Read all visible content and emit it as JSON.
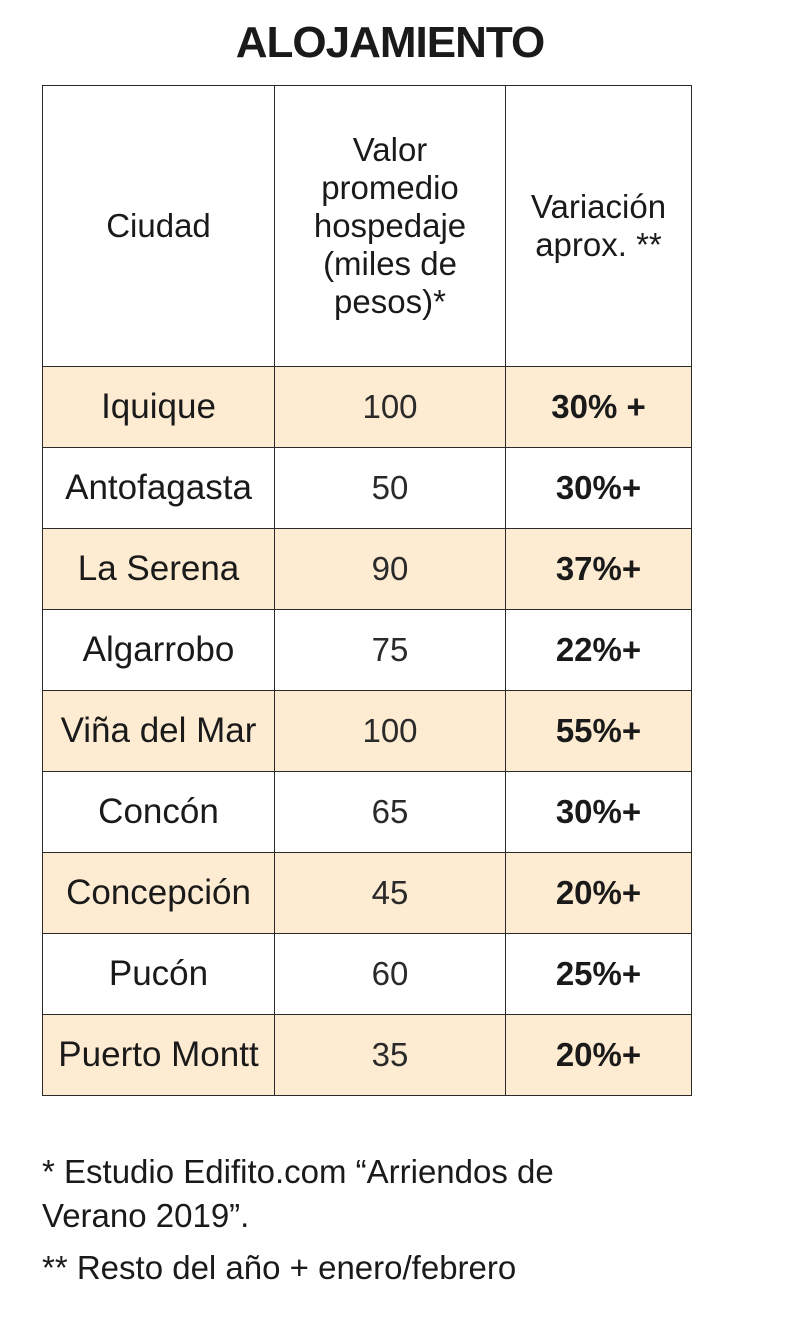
{
  "title": "ALOJAMIENTO",
  "table": {
    "headers": [
      "Ciudad",
      "Valor promedio hospedaje (miles de pesos)*",
      "Variación aprox. **"
    ],
    "rows": [
      {
        "city": "Iquique",
        "value": "100",
        "variation": "30% +",
        "shaded": true
      },
      {
        "city": "Antofagasta",
        "value": "50",
        "variation": "30%+",
        "shaded": false
      },
      {
        "city": "La Serena",
        "value": "90",
        "variation": "37%+",
        "shaded": true
      },
      {
        "city": "Algarrobo",
        "value": "75",
        "variation": "22%+",
        "shaded": false
      },
      {
        "city": "Viña del Mar",
        "value": "100",
        "variation": "55%+",
        "shaded": true
      },
      {
        "city": "Concón",
        "value": "65",
        "variation": "30%+",
        "shaded": false
      },
      {
        "city": "Concepción",
        "value": "45",
        "variation": "20%+",
        "shaded": true
      },
      {
        "city": "Pucón",
        "value": "60",
        "variation": "25%+",
        "shaded": false
      },
      {
        "city": "Puerto Montt",
        "value": "35",
        "variation": "20%+",
        "shaded": true
      }
    ]
  },
  "footnotes": {
    "note1": "* Estudio Edifito.com “Arriendos de Verano 2019”.",
    "note2": "** Resto del año + enero/febrero"
  },
  "colors": {
    "shaded_row": "#fdebd2",
    "border": "#2a2a2a",
    "text": "#1a1a1a"
  }
}
